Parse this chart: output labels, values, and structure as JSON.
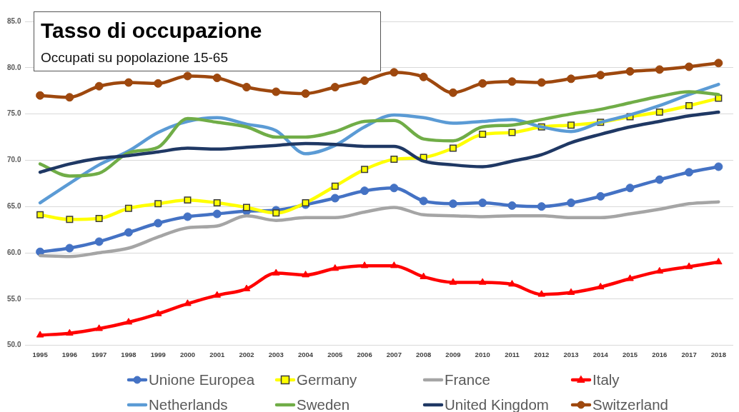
{
  "chart_data": {
    "type": "line",
    "title": "Tasso di occupazione",
    "subtitle": "Occupati su popolazione 15-65",
    "categories": [
      "1995",
      "1996",
      "1997",
      "1998",
      "1999",
      "2000",
      "2001",
      "2002",
      "2003",
      "2004",
      "2005",
      "2006",
      "2007",
      "2008",
      "2009",
      "2010",
      "2011",
      "2012",
      "2013",
      "2014",
      "2015",
      "2016",
      "2017",
      "2018"
    ],
    "series": [
      {
        "name": "Unione Europea",
        "color": "#4472c4",
        "marker": "circle",
        "values": [
          60.1,
          60.5,
          61.2,
          62.2,
          63.2,
          63.9,
          64.2,
          64.5,
          64.6,
          65.2,
          65.9,
          66.7,
          67.0,
          65.6,
          65.3,
          65.4,
          65.1,
          65.0,
          65.4,
          66.1,
          67.0,
          67.9,
          68.7,
          69.3
        ]
      },
      {
        "name": "Germany",
        "color": "#ffff00",
        "marker": "square",
        "values": [
          64.1,
          63.6,
          63.7,
          64.8,
          65.3,
          65.7,
          65.4,
          64.9,
          64.3,
          65.4,
          67.2,
          69.0,
          70.1,
          70.3,
          71.3,
          72.8,
          73.0,
          73.6,
          73.8,
          74.1,
          74.7,
          75.2,
          75.9,
          76.7
        ]
      },
      {
        "name": "France",
        "color": "#a5a5a5",
        "marker": "none",
        "values": [
          59.7,
          59.6,
          60.0,
          60.5,
          61.7,
          62.7,
          62.9,
          64.0,
          63.5,
          63.8,
          63.8,
          64.4,
          64.9,
          64.1,
          64.0,
          63.9,
          64.0,
          64.0,
          63.8,
          63.8,
          64.2,
          64.7,
          65.3,
          65.5
        ]
      },
      {
        "name": "Italy",
        "color": "#ff0000",
        "marker": "triangle",
        "values": [
          51.1,
          51.3,
          51.8,
          52.5,
          53.4,
          54.5,
          55.4,
          56.1,
          57.8,
          57.6,
          58.3,
          58.6,
          58.6,
          57.4,
          56.8,
          56.8,
          56.6,
          55.5,
          55.7,
          56.3,
          57.2,
          58.0,
          58.5,
          59.0
        ]
      },
      {
        "name": "Netherlands",
        "color": "#5b9bd5",
        "marker": "none",
        "values": [
          65.4,
          67.5,
          69.5,
          71.0,
          73.0,
          74.2,
          74.6,
          73.9,
          73.2,
          70.7,
          71.6,
          73.6,
          74.9,
          74.6,
          74.0,
          74.2,
          74.4,
          73.6,
          73.1,
          74.1,
          74.9,
          75.9,
          77.1,
          78.2
        ]
      },
      {
        "name": "Sweden",
        "color": "#70ad47",
        "marker": "none",
        "values": [
          69.6,
          68.3,
          68.6,
          70.8,
          71.4,
          74.5,
          74.1,
          73.6,
          72.5,
          72.5,
          73.1,
          74.2,
          74.3,
          72.3,
          72.1,
          73.6,
          73.8,
          74.4,
          75.0,
          75.5,
          76.2,
          76.9,
          77.4,
          77.1
        ]
      },
      {
        "name": "United Kingdom",
        "color": "#1f3864",
        "marker": "none",
        "values": [
          68.7,
          69.6,
          70.2,
          70.5,
          70.9,
          71.3,
          71.2,
          71.4,
          71.6,
          71.8,
          71.7,
          71.5,
          71.5,
          69.9,
          69.5,
          69.3,
          69.9,
          70.6,
          71.9,
          72.8,
          73.6,
          74.2,
          74.8,
          75.2
        ]
      },
      {
        "name": "Switzerland",
        "color": "#9e480e",
        "marker": "circle",
        "values": [
          77.0,
          76.8,
          78.0,
          78.4,
          78.3,
          79.1,
          78.9,
          77.9,
          77.4,
          77.2,
          77.9,
          78.6,
          79.5,
          79.0,
          77.3,
          78.3,
          78.5,
          78.4,
          78.8,
          79.2,
          79.6,
          79.8,
          80.1,
          80.5
        ]
      }
    ],
    "ylim": [
      50,
      85
    ],
    "yticks": [
      {
        "value": 50,
        "label": "50.0"
      },
      {
        "value": 55,
        "label": "55.0"
      },
      {
        "value": 60,
        "label": "60.0"
      },
      {
        "value": 65,
        "label": "65.0"
      },
      {
        "value": 70,
        "label": "70.0"
      },
      {
        "value": 75,
        "label": "75.0"
      },
      {
        "value": 80,
        "label": "80.0"
      },
      {
        "value": 85,
        "label": "85.0"
      }
    ],
    "grid": "y",
    "legend": "bottom"
  }
}
